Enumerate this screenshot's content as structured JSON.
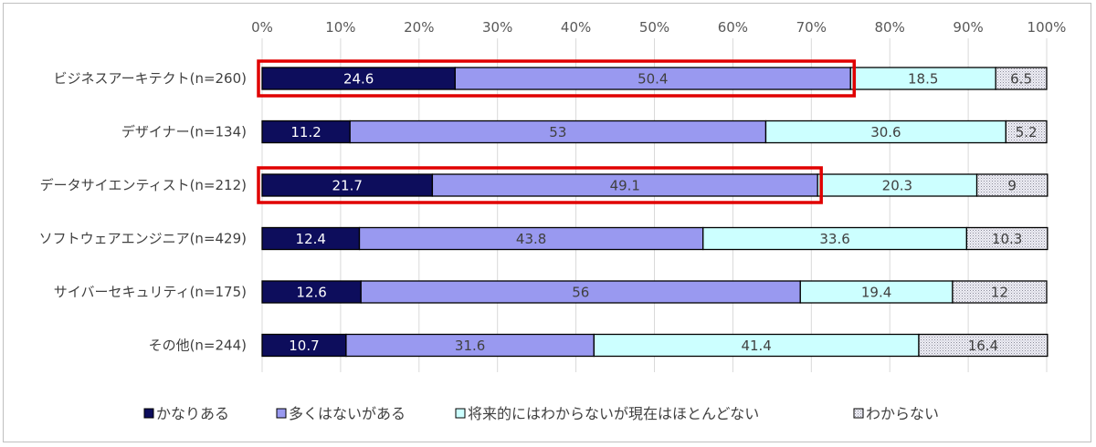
{
  "chart_data": {
    "type": "bar",
    "orientation": "horizontal",
    "stacked": "percent",
    "categories": [
      "ビジネスアーキテクト(n=260)",
      "デザイナー(n=134)",
      "データサイエンティスト(n=212)",
      "ソフトウェアエンジニア(n=429)",
      "サイバーセキュリティ(n=175)",
      "その他(n=244)"
    ],
    "series": [
      {
        "name": "かなりある",
        "values": [
          24.6,
          11.2,
          21.7,
          12.4,
          12.6,
          10.7
        ],
        "labels": [
          "24.6",
          "11.2",
          "21.7",
          "12.4",
          "12.6",
          "10.7"
        ],
        "color": "#0d0d5c",
        "label_color": "#ffffff"
      },
      {
        "name": "多くはないがある",
        "values": [
          50.4,
          53,
          49.1,
          43.8,
          56,
          31.6
        ],
        "labels": [
          "50.4",
          "53",
          "49.1",
          "43.8",
          "56",
          "31.6"
        ],
        "color": "#9999f0",
        "label_color": "#404040"
      },
      {
        "name": "将来的にはわからないが現在はほとんどない",
        "values": [
          18.5,
          30.6,
          20.3,
          33.6,
          19.4,
          41.4
        ],
        "labels": [
          "18.5",
          "30.6",
          "20.3",
          "33.6",
          "19.4",
          "41.4"
        ],
        "color": "#ccffff",
        "label_color": "#404040"
      },
      {
        "name": "わからない",
        "values": [
          6.5,
          5.2,
          9,
          10.3,
          12,
          16.4
        ],
        "labels": [
          "6.5",
          "5.2",
          "9",
          "10.3",
          "12",
          "16.4"
        ],
        "color": "#e6e6ee",
        "label_color": "#404040",
        "pattern": "dots"
      }
    ],
    "x_ticks": [
      "0%",
      "10%",
      "20%",
      "30%",
      "40%",
      "50%",
      "60%",
      "70%",
      "80%",
      "90%",
      "100%"
    ],
    "xlim": [
      0,
      100
    ],
    "grid": "vertical",
    "legend": "bottom",
    "highlights": [
      {
        "category": "ビジネスアーキテクト(n=260)",
        "series": [
          "かなりある",
          "多くはないがある"
        ],
        "color": "#e00000"
      },
      {
        "category": "データサイエンティスト(n=212)",
        "series": [
          "かなりある",
          "多くはないがある"
        ],
        "color": "#e00000"
      }
    ]
  }
}
